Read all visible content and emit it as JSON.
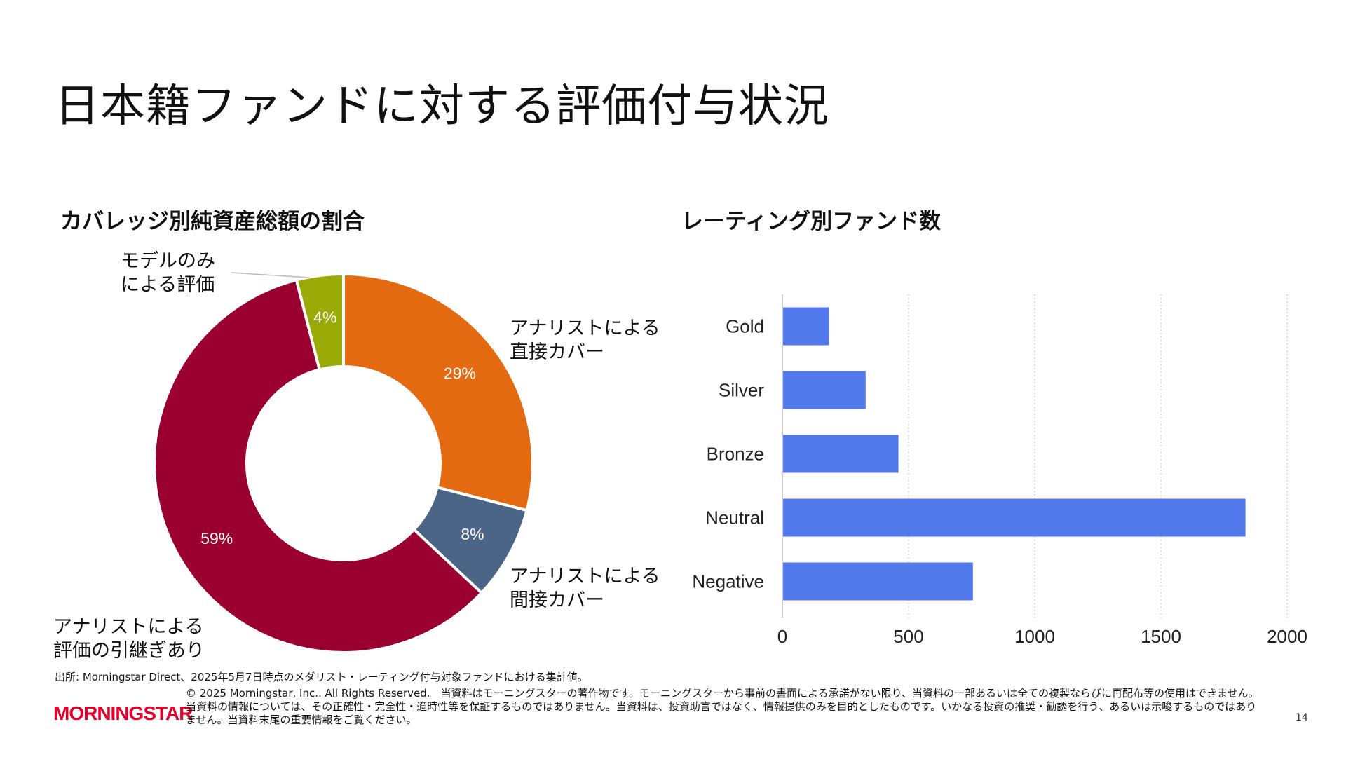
{
  "page": {
    "title": "日本籍ファンドに対する評価付与状況",
    "source": "出所: Morningstar Direct、2025年5月7日時点のメダリスト・レーティング付与対象ファンドにおける集計値。",
    "copyright": "© 2025 Morningstar, Inc.. All Rights Reserved.　当資料はモーニングスターの著作物です。モーニングスターから事前の書面による承諾がない限り、当資料の一部あるいは全ての複製ならびに再配布等の使用はできません。当資料の情報については、その正確性・完全性・適時性等を保証するものではありません。当資料は、投資助言ではなく、情報提供のみを目的としたものです。いかなる投資の推奨・勧誘を行う、あるいは示唆するものではありません。当資料末尾の重要情報をご覧ください。",
    "logo": "MORNINGSTAR",
    "page_number": "14"
  },
  "chart_data": [
    {
      "type": "pie",
      "title": "カバレッジ別純資産総額の割合",
      "slices": [
        {
          "label": "アナリストによる\n直接カバー",
          "value": 29,
          "display": "29%",
          "color": "#e46a12"
        },
        {
          "label": "アナリストによる\n間接カバー",
          "value": 8,
          "display": "8%",
          "color": "#4b6587"
        },
        {
          "label": "アナリストによる\n評価の引継ぎあり",
          "value": 59,
          "display": "59%",
          "color": "#9a0030"
        },
        {
          "label": "モデルのみ\nによる評価",
          "value": 4,
          "display": "4%",
          "color": "#9aaa07"
        }
      ]
    },
    {
      "type": "bar",
      "orientation": "horizontal",
      "title": "レーティング別ファンド数",
      "categories": [
        "Gold",
        "Silver",
        "Bronze",
        "Neutral",
        "Negative"
      ],
      "values": [
        185,
        330,
        460,
        1835,
        755
      ],
      "xlim": [
        0,
        2000
      ],
      "xticks": [
        "0",
        "500",
        "1000",
        "1500",
        "2000"
      ],
      "grid": "vertical dotted",
      "color": "#527aed"
    }
  ]
}
